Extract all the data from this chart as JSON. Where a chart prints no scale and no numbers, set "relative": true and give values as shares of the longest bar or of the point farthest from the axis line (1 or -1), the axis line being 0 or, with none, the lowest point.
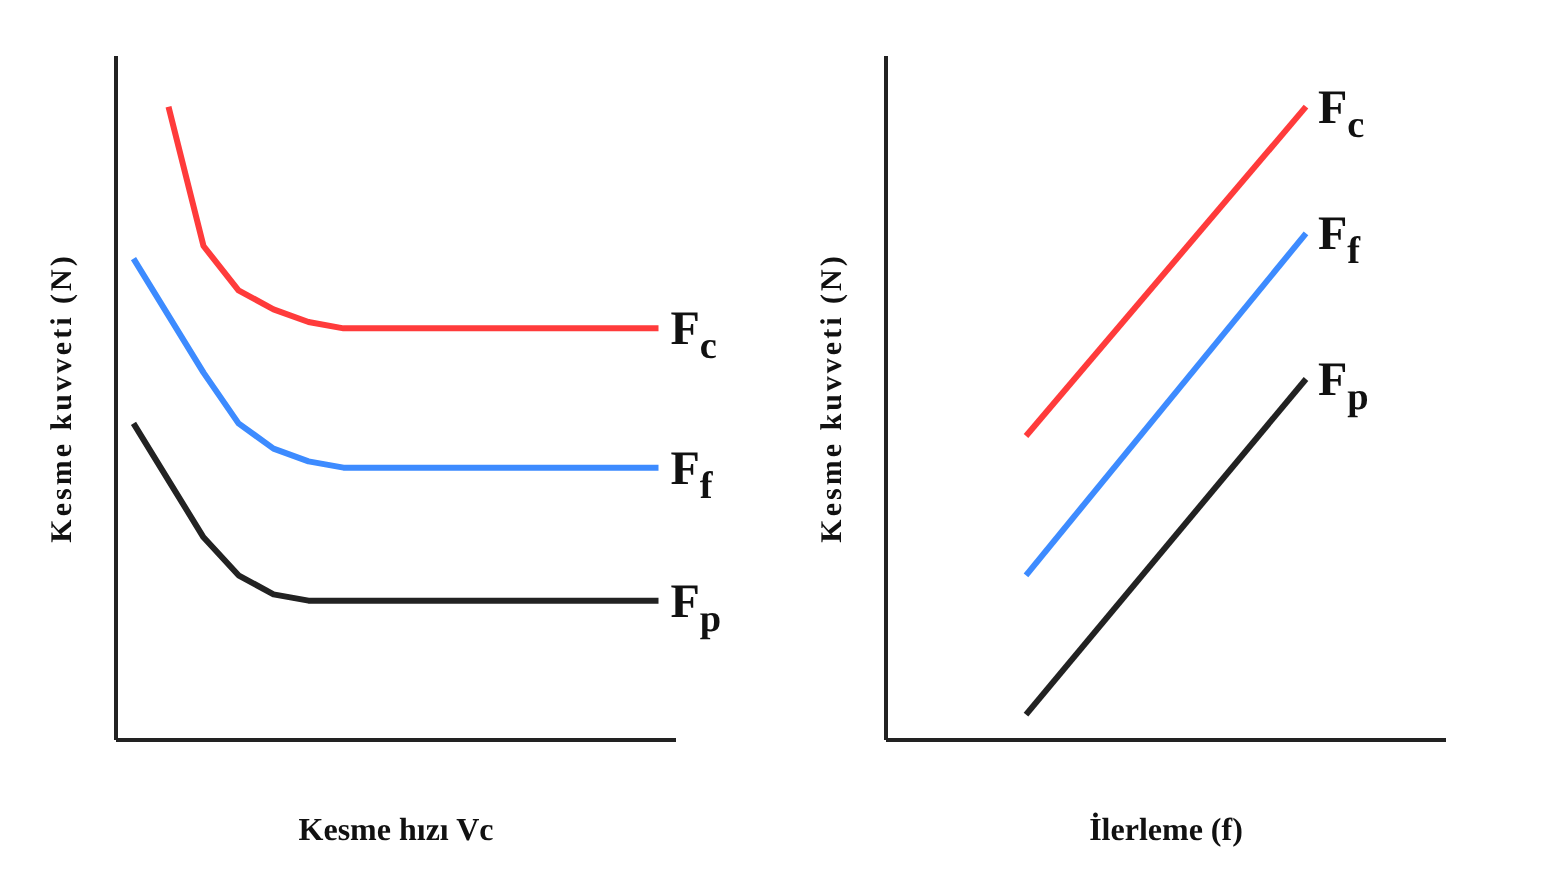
{
  "chart_data": [
    {
      "type": "line",
      "relative": true,
      "xlabel": "Kesme hızı  Vc",
      "ylabel": "Kesme kuvveti (N)",
      "categories": [
        null,
        null,
        null,
        null,
        null,
        null,
        null,
        null,
        null,
        null,
        null,
        null,
        null,
        null,
        null,
        null
      ],
      "marker": "none",
      "line_style": "solid",
      "grid": false,
      "legend": false,
      "series": [
        {
          "name": "F$_{c}$",
          "color": "#ff3b3b",
          "values": [
            null,
            1.0,
            0.78,
            0.71,
            0.68,
            0.66,
            0.65,
            0.65,
            0.65,
            0.65,
            0.65,
            0.65,
            0.65,
            0.65,
            0.65,
            0.65
          ]
        },
        {
          "name": "F$_{f}$",
          "color": "#3d8bff",
          "values": [
            0.76,
            0.67,
            0.58,
            0.5,
            0.46,
            0.44,
            0.43,
            0.43,
            0.43,
            0.43,
            0.43,
            0.43,
            0.43,
            0.43,
            0.43,
            0.43
          ]
        },
        {
          "name": "F$_{p}$",
          "color": "#222222",
          "values": [
            0.5,
            0.41,
            0.32,
            0.26,
            0.23,
            0.22,
            0.22,
            0.22,
            0.22,
            0.22,
            0.22,
            0.22,
            0.22,
            0.22,
            0.22,
            0.22
          ]
        }
      ]
    },
    {
      "type": "line",
      "relative": true,
      "xlabel": "İlerleme (f)",
      "ylabel": "Kesme kuvveti (N)",
      "categories": [
        null,
        null
      ],
      "marker": "none",
      "line_style": "solid",
      "grid": false,
      "legend": false,
      "series": [
        {
          "name": "F$_{c}$",
          "color": "#ff3b3b",
          "values": [
            0.48,
            1.0
          ]
        },
        {
          "name": "F$_{f}$",
          "color": "#3d8bff",
          "values": [
            0.26,
            0.8
          ]
        },
        {
          "name": "F$_{p}$",
          "color": "#222222",
          "values": [
            0.04,
            0.57
          ]
        }
      ]
    }
  ]
}
